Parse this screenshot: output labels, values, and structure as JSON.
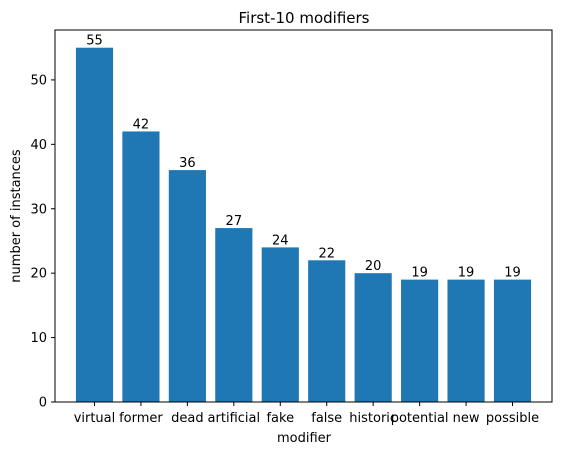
{
  "chart_data": {
    "type": "bar",
    "title": "First-10 modifiers",
    "xlabel": "modifier",
    "ylabel": "number of instances",
    "categories": [
      "virtual",
      "former",
      "dead",
      "artificial",
      "fake",
      "false",
      "historic",
      "potential",
      "new",
      "possible"
    ],
    "values": [
      55,
      42,
      36,
      27,
      24,
      22,
      20,
      19,
      19,
      19
    ],
    "ylim": [
      0,
      57.75
    ],
    "yticks": [
      0,
      10,
      20,
      30,
      40,
      50
    ],
    "bar_color": "#1f77b4",
    "grid": false,
    "legend": "none"
  }
}
